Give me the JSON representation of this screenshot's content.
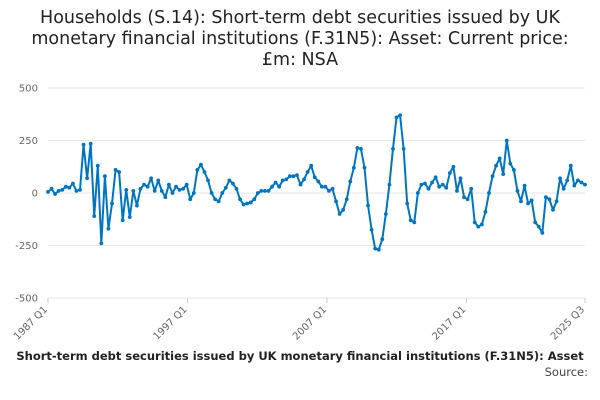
{
  "chart_data": {
    "type": "line",
    "title": "Households (S.14): Short-term debt securities issued by UK monetary financial institutions (F.31N5): Asset: Current price: £m: NSA",
    "xlabel": "Short-term debt securities issued by UK monetary financial institutions (F.31N5): Asset",
    "ylabel": "",
    "source_label": "Source:",
    "x_range": [
      "1987 Q1",
      "2025 Q3"
    ],
    "x_ticks": [
      "1987 Q1",
      "1997 Q1",
      "2007 Q1",
      "2017 Q1",
      "2025 Q3"
    ],
    "ylim": [
      -500,
      500
    ],
    "y_ticks": [
      500,
      250,
      0,
      -250,
      -500
    ],
    "grid": true,
    "legend": "none",
    "line_color": "#0075c2",
    "series": [
      {
        "values": [
          5,
          20,
          -5,
          10,
          15,
          30,
          25,
          45,
          10,
          15,
          230,
          70,
          235,
          -110,
          130,
          -240,
          80,
          -170,
          -50,
          110,
          100,
          -130,
          15,
          -115,
          10,
          -60,
          20,
          40,
          30,
          70,
          10,
          60,
          10,
          -20,
          40,
          0,
          30,
          15,
          20,
          40,
          -30,
          0,
          110,
          135,
          100,
          60,
          0,
          -30,
          -40,
          0,
          25,
          60,
          45,
          20,
          -30,
          -55,
          -50,
          -45,
          -30,
          0,
          10,
          10,
          10,
          30,
          50,
          30,
          60,
          65,
          80,
          80,
          85,
          40,
          65,
          100,
          130,
          75,
          55,
          30,
          30,
          10,
          20,
          -40,
          -100,
          -80,
          -30,
          55,
          120,
          215,
          210,
          120,
          -60,
          -175,
          -265,
          -270,
          -220,
          -100,
          40,
          210,
          360,
          370,
          210,
          -50,
          -130,
          -140,
          0,
          40,
          45,
          20,
          50,
          75,
          30,
          40,
          25,
          95,
          125,
          10,
          70,
          -20,
          -30,
          20,
          -140,
          -160,
          -150,
          -90,
          0,
          80,
          130,
          165,
          90,
          250,
          140,
          110,
          10,
          -40,
          35,
          -50,
          -35,
          -140,
          -160,
          -190,
          -20,
          -30,
          -80,
          -40,
          70,
          20,
          60,
          130,
          35,
          60,
          50,
          40
        ]
      }
    ]
  }
}
